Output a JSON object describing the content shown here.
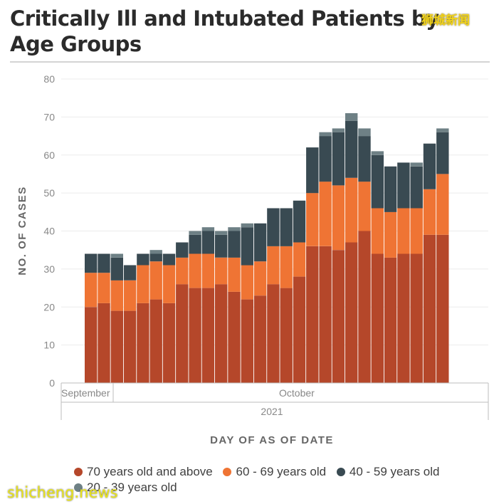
{
  "title": "Critically Ill and Intubated Patients by Age Groups",
  "watermark_top": "狮城新闻",
  "watermark_bottom": "shicheng.news",
  "chart_data": {
    "type": "bar",
    "stacked": true,
    "title": "Critically Ill and Intubated Patients by Age Groups",
    "xlabel": "DAY OF AS OF DATE",
    "ylabel": "NO. OF CASES",
    "ylim": [
      0,
      80
    ],
    "yticks": [
      "0",
      "10",
      "20",
      "30",
      "40",
      "50",
      "60",
      "70",
      "80"
    ],
    "grid": true,
    "x_month_labels": [
      "September",
      "October"
    ],
    "x_year_label": "2021",
    "num_days": 28,
    "series": [
      {
        "name": "70 years old and above",
        "color": "#b5472a",
        "values": [
          20,
          21,
          19,
          19,
          21,
          22,
          21,
          26,
          25,
          25,
          26,
          24,
          22,
          23,
          26,
          25,
          28,
          36,
          36,
          35,
          37,
          40,
          34,
          33,
          34,
          34,
          39,
          39
        ]
      },
      {
        "name": "60 - 69 years old",
        "color": "#ef7434",
        "values": [
          9,
          8,
          8,
          8,
          10,
          10,
          10,
          7,
          9,
          9,
          7,
          9,
          9,
          9,
          10,
          11,
          9,
          14,
          17,
          17,
          17,
          13,
          12,
          12,
          12,
          12,
          12,
          16
        ]
      },
      {
        "name": "40 - 59 years old",
        "color": "#394a52",
        "values": [
          5,
          5,
          6,
          4,
          3,
          2,
          3,
          4,
          5,
          6,
          6,
          7,
          10,
          10,
          10,
          10,
          11,
          12,
          12,
          14,
          15,
          12,
          14,
          12,
          12,
          11,
          12,
          11
        ]
      },
      {
        "name": "20 - 39 years old",
        "color": "#6e8085",
        "values": [
          0,
          0,
          1,
          0,
          0,
          1,
          0,
          0,
          1,
          1,
          1,
          1,
          1,
          0,
          0,
          0,
          0,
          0,
          1,
          1,
          2,
          2,
          1,
          0,
          0,
          1,
          0,
          1
        ]
      }
    ]
  }
}
